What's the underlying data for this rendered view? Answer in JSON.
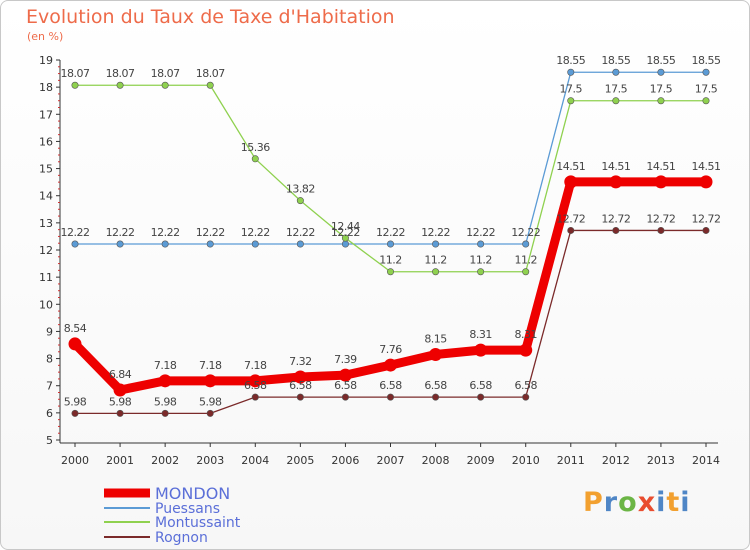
{
  "title": "Evolution du Taux de Taxe d'Habitation",
  "unit": "(en %)",
  "logo_text": "Proxiti",
  "chart_data": {
    "type": "line",
    "x": [
      "2000",
      "2001",
      "2002",
      "2003",
      "2004",
      "2005",
      "2006",
      "2007",
      "2008",
      "2009",
      "2010",
      "2011",
      "2012",
      "2013",
      "2014"
    ],
    "ylim": [
      5,
      19
    ],
    "yticks": [
      5,
      6,
      7,
      8,
      9,
      10,
      11,
      12,
      13,
      14,
      15,
      16,
      17,
      18,
      19
    ],
    "grid": false,
    "legend_position": "bottom-left",
    "series": [
      {
        "name": "MONDON",
        "color": "#ee0000",
        "labels": [
          "8.54",
          "6.84",
          "7.18",
          "7.18",
          "7.18",
          "7.32",
          "7.39",
          "7.76",
          "8.15",
          "8.31",
          "8.31",
          "14.51",
          "14.51",
          "14.51",
          "14.51"
        ],
        "values": [
          8.54,
          6.84,
          7.18,
          7.18,
          7.18,
          7.32,
          7.39,
          7.76,
          8.15,
          8.31,
          8.31,
          14.51,
          14.51,
          14.51,
          14.51
        ]
      },
      {
        "name": "Puessans",
        "color": "#5b9bd5",
        "labels": [
          "12.22",
          "12.22",
          "12.22",
          "12.22",
          "12.22",
          "12.22",
          "12.22",
          "12.22",
          "12.22",
          "12.22",
          "12.22",
          "18.55",
          "18.55",
          "18.55",
          "18.55"
        ],
        "values": [
          12.22,
          12.22,
          12.22,
          12.22,
          12.22,
          12.22,
          12.22,
          12.22,
          12.22,
          12.22,
          12.22,
          18.55,
          18.55,
          18.55,
          18.55
        ]
      },
      {
        "name": "Montussaint",
        "color": "#8fd14f",
        "labels": [
          "18.07",
          "18.07",
          "18.07",
          "18.07",
          "15.36",
          "13.82",
          "12.44",
          "11.2",
          "11.2",
          "11.2",
          "11.2",
          "17.5",
          "17.5",
          "17.5",
          "17.5"
        ],
        "values": [
          18.07,
          18.07,
          18.07,
          18.07,
          15.36,
          13.82,
          12.44,
          11.2,
          11.2,
          11.2,
          11.2,
          17.5,
          17.5,
          17.5,
          17.5
        ]
      },
      {
        "name": "Rognon",
        "color": "#7b2a2a",
        "labels": [
          "5.98",
          "5.98",
          "5.98",
          "5.98",
          "6.58",
          "6.58",
          "6.58",
          "6.58",
          "6.58",
          "6.58",
          "6.58",
          "12.72",
          "12.72",
          "12.72",
          "12.72"
        ],
        "values": [
          5.98,
          5.98,
          5.98,
          5.98,
          6.58,
          6.58,
          6.58,
          6.58,
          6.58,
          6.58,
          6.58,
          12.72,
          12.72,
          12.72,
          12.72
        ]
      }
    ]
  }
}
